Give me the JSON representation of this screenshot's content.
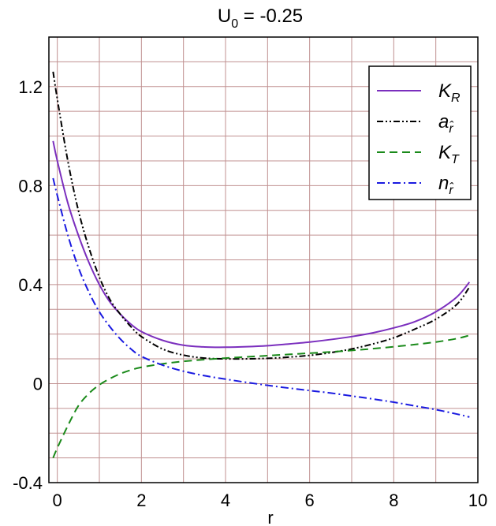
{
  "chart_data": {
    "type": "line",
    "title": "U",
    "title_sub": "0",
    "title_rest": " = -0.25",
    "xlabel": "r",
    "ylabel": "",
    "xlim": [
      -0.2,
      10.0
    ],
    "ylim": [
      -0.4,
      1.4
    ],
    "xticks": [
      0,
      2,
      4,
      6,
      8,
      10
    ],
    "xtick_labels": [
      "0",
      "2",
      "4",
      "6",
      "8",
      "10"
    ],
    "yticks": [
      -0.4,
      0,
      0.4,
      0.8,
      1.2
    ],
    "ytick_labels": [
      "-0.4",
      "0",
      "0.4",
      "0.8",
      "1.2"
    ],
    "grid": true,
    "grid_color": "#c09090",
    "legend_position": "top-right",
    "series": [
      {
        "name": "K",
        "name_sub": "R",
        "color": "#7b2fbe",
        "dash": "solid",
        "x": [
          -0.1,
          0.0,
          0.25,
          0.5,
          0.75,
          1.0,
          1.25,
          1.5,
          1.75,
          2.0,
          2.5,
          3.0,
          3.5,
          4.0,
          4.5,
          5.0,
          5.5,
          6.0,
          6.5,
          7.0,
          7.5,
          8.0,
          8.5,
          9.0,
          9.5,
          9.8
        ],
        "y": [
          0.98,
          0.9,
          0.73,
          0.6,
          0.49,
          0.4,
          0.33,
          0.28,
          0.24,
          0.21,
          0.175,
          0.155,
          0.148,
          0.147,
          0.149,
          0.153,
          0.16,
          0.168,
          0.178,
          0.19,
          0.205,
          0.225,
          0.25,
          0.29,
          0.35,
          0.41
        ]
      },
      {
        "name": "a",
        "name_sub": "r̂",
        "color": "#000000",
        "dash": "dashdotdot",
        "x": [
          -0.1,
          0.0,
          0.25,
          0.5,
          0.75,
          1.0,
          1.25,
          1.5,
          1.75,
          2.0,
          2.5,
          3.0,
          3.5,
          4.0,
          4.5,
          5.0,
          5.5,
          6.0,
          6.5,
          7.0,
          7.5,
          8.0,
          8.5,
          9.0,
          9.5,
          9.8
        ],
        "y": [
          1.26,
          1.15,
          0.9,
          0.7,
          0.55,
          0.43,
          0.34,
          0.28,
          0.23,
          0.19,
          0.14,
          0.115,
          0.103,
          0.1,
          0.1,
          0.102,
          0.107,
          0.114,
          0.125,
          0.14,
          0.16,
          0.185,
          0.22,
          0.26,
          0.32,
          0.39
        ]
      },
      {
        "name": "K",
        "name_sub": "T",
        "color": "#1a8a1a",
        "dash": "dashed",
        "x": [
          -0.1,
          0.0,
          0.25,
          0.5,
          0.75,
          1.0,
          1.25,
          1.5,
          1.75,
          2.0,
          2.5,
          3.0,
          3.5,
          4.0,
          4.5,
          5.0,
          5.5,
          6.0,
          6.5,
          7.0,
          7.5,
          8.0,
          8.5,
          9.0,
          9.5,
          9.8
        ],
        "y": [
          -0.3,
          -0.26,
          -0.17,
          -0.09,
          -0.04,
          -0.005,
          0.02,
          0.04,
          0.055,
          0.066,
          0.08,
          0.09,
          0.097,
          0.103,
          0.108,
          0.113,
          0.118,
          0.123,
          0.128,
          0.134,
          0.141,
          0.149,
          0.158,
          0.168,
          0.182,
          0.195
        ]
      },
      {
        "name": "n",
        "name_sub": "r̂",
        "color": "#1a1ae0",
        "dash": "dashdot",
        "x": [
          -0.1,
          0.0,
          0.25,
          0.5,
          0.75,
          1.0,
          1.25,
          1.5,
          1.75,
          2.0,
          2.5,
          3.0,
          3.5,
          4.0,
          4.5,
          5.0,
          5.5,
          6.0,
          6.5,
          7.0,
          7.5,
          8.0,
          8.5,
          9.0,
          9.5,
          9.8
        ],
        "y": [
          0.83,
          0.76,
          0.6,
          0.47,
          0.37,
          0.29,
          0.23,
          0.18,
          0.14,
          0.11,
          0.075,
          0.05,
          0.032,
          0.018,
          0.005,
          -0.007,
          -0.018,
          -0.028,
          -0.038,
          -0.05,
          -0.062,
          -0.075,
          -0.09,
          -0.105,
          -0.123,
          -0.135
        ]
      }
    ]
  }
}
